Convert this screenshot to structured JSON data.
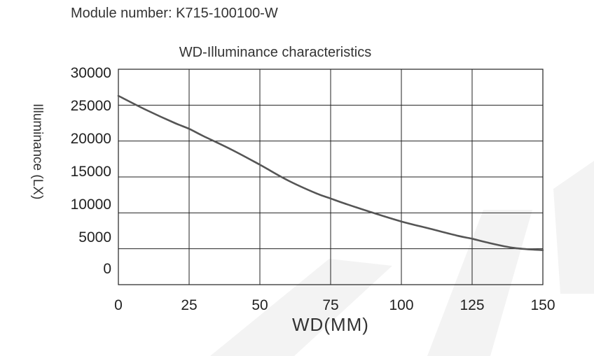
{
  "module_label": "Module number: K715-100100-W",
  "colors": {
    "grid": "#222222",
    "line": "#555555",
    "watermark": "#f2f2f2"
  },
  "chart_data": {
    "type": "line",
    "title": "WD-Illuminance characteristics",
    "xlabel": "WD(MM)",
    "ylabel": "Illuminance (LX)",
    "xlim": [
      0,
      150
    ],
    "ylim": [
      0,
      30000
    ],
    "x_ticks": [
      0,
      25,
      50,
      75,
      100,
      125,
      150
    ],
    "y_ticks": [
      30000,
      25000,
      20000,
      15000,
      10000,
      5000,
      0
    ],
    "y_tick_labels": [
      "30000",
      "25000",
      "20000",
      "15000",
      "10000",
      "5000",
      "0"
    ],
    "x_tick_labels": [
      "0",
      "25",
      "50",
      "75",
      "100",
      "125",
      "150"
    ],
    "grid": true,
    "legend": "none",
    "series": [
      {
        "x": [
          0,
          10,
          20,
          25,
          30,
          40,
          50,
          60,
          70,
          75,
          80,
          90,
          100,
          110,
          120,
          125,
          130,
          140,
          150
        ],
        "values": [
          26300,
          24300,
          22500,
          21700,
          20700,
          18800,
          16700,
          14500,
          12700,
          12000,
          11300,
          10000,
          8800,
          7800,
          6800,
          6400,
          5900,
          5100,
          4800
        ]
      }
    ]
  }
}
